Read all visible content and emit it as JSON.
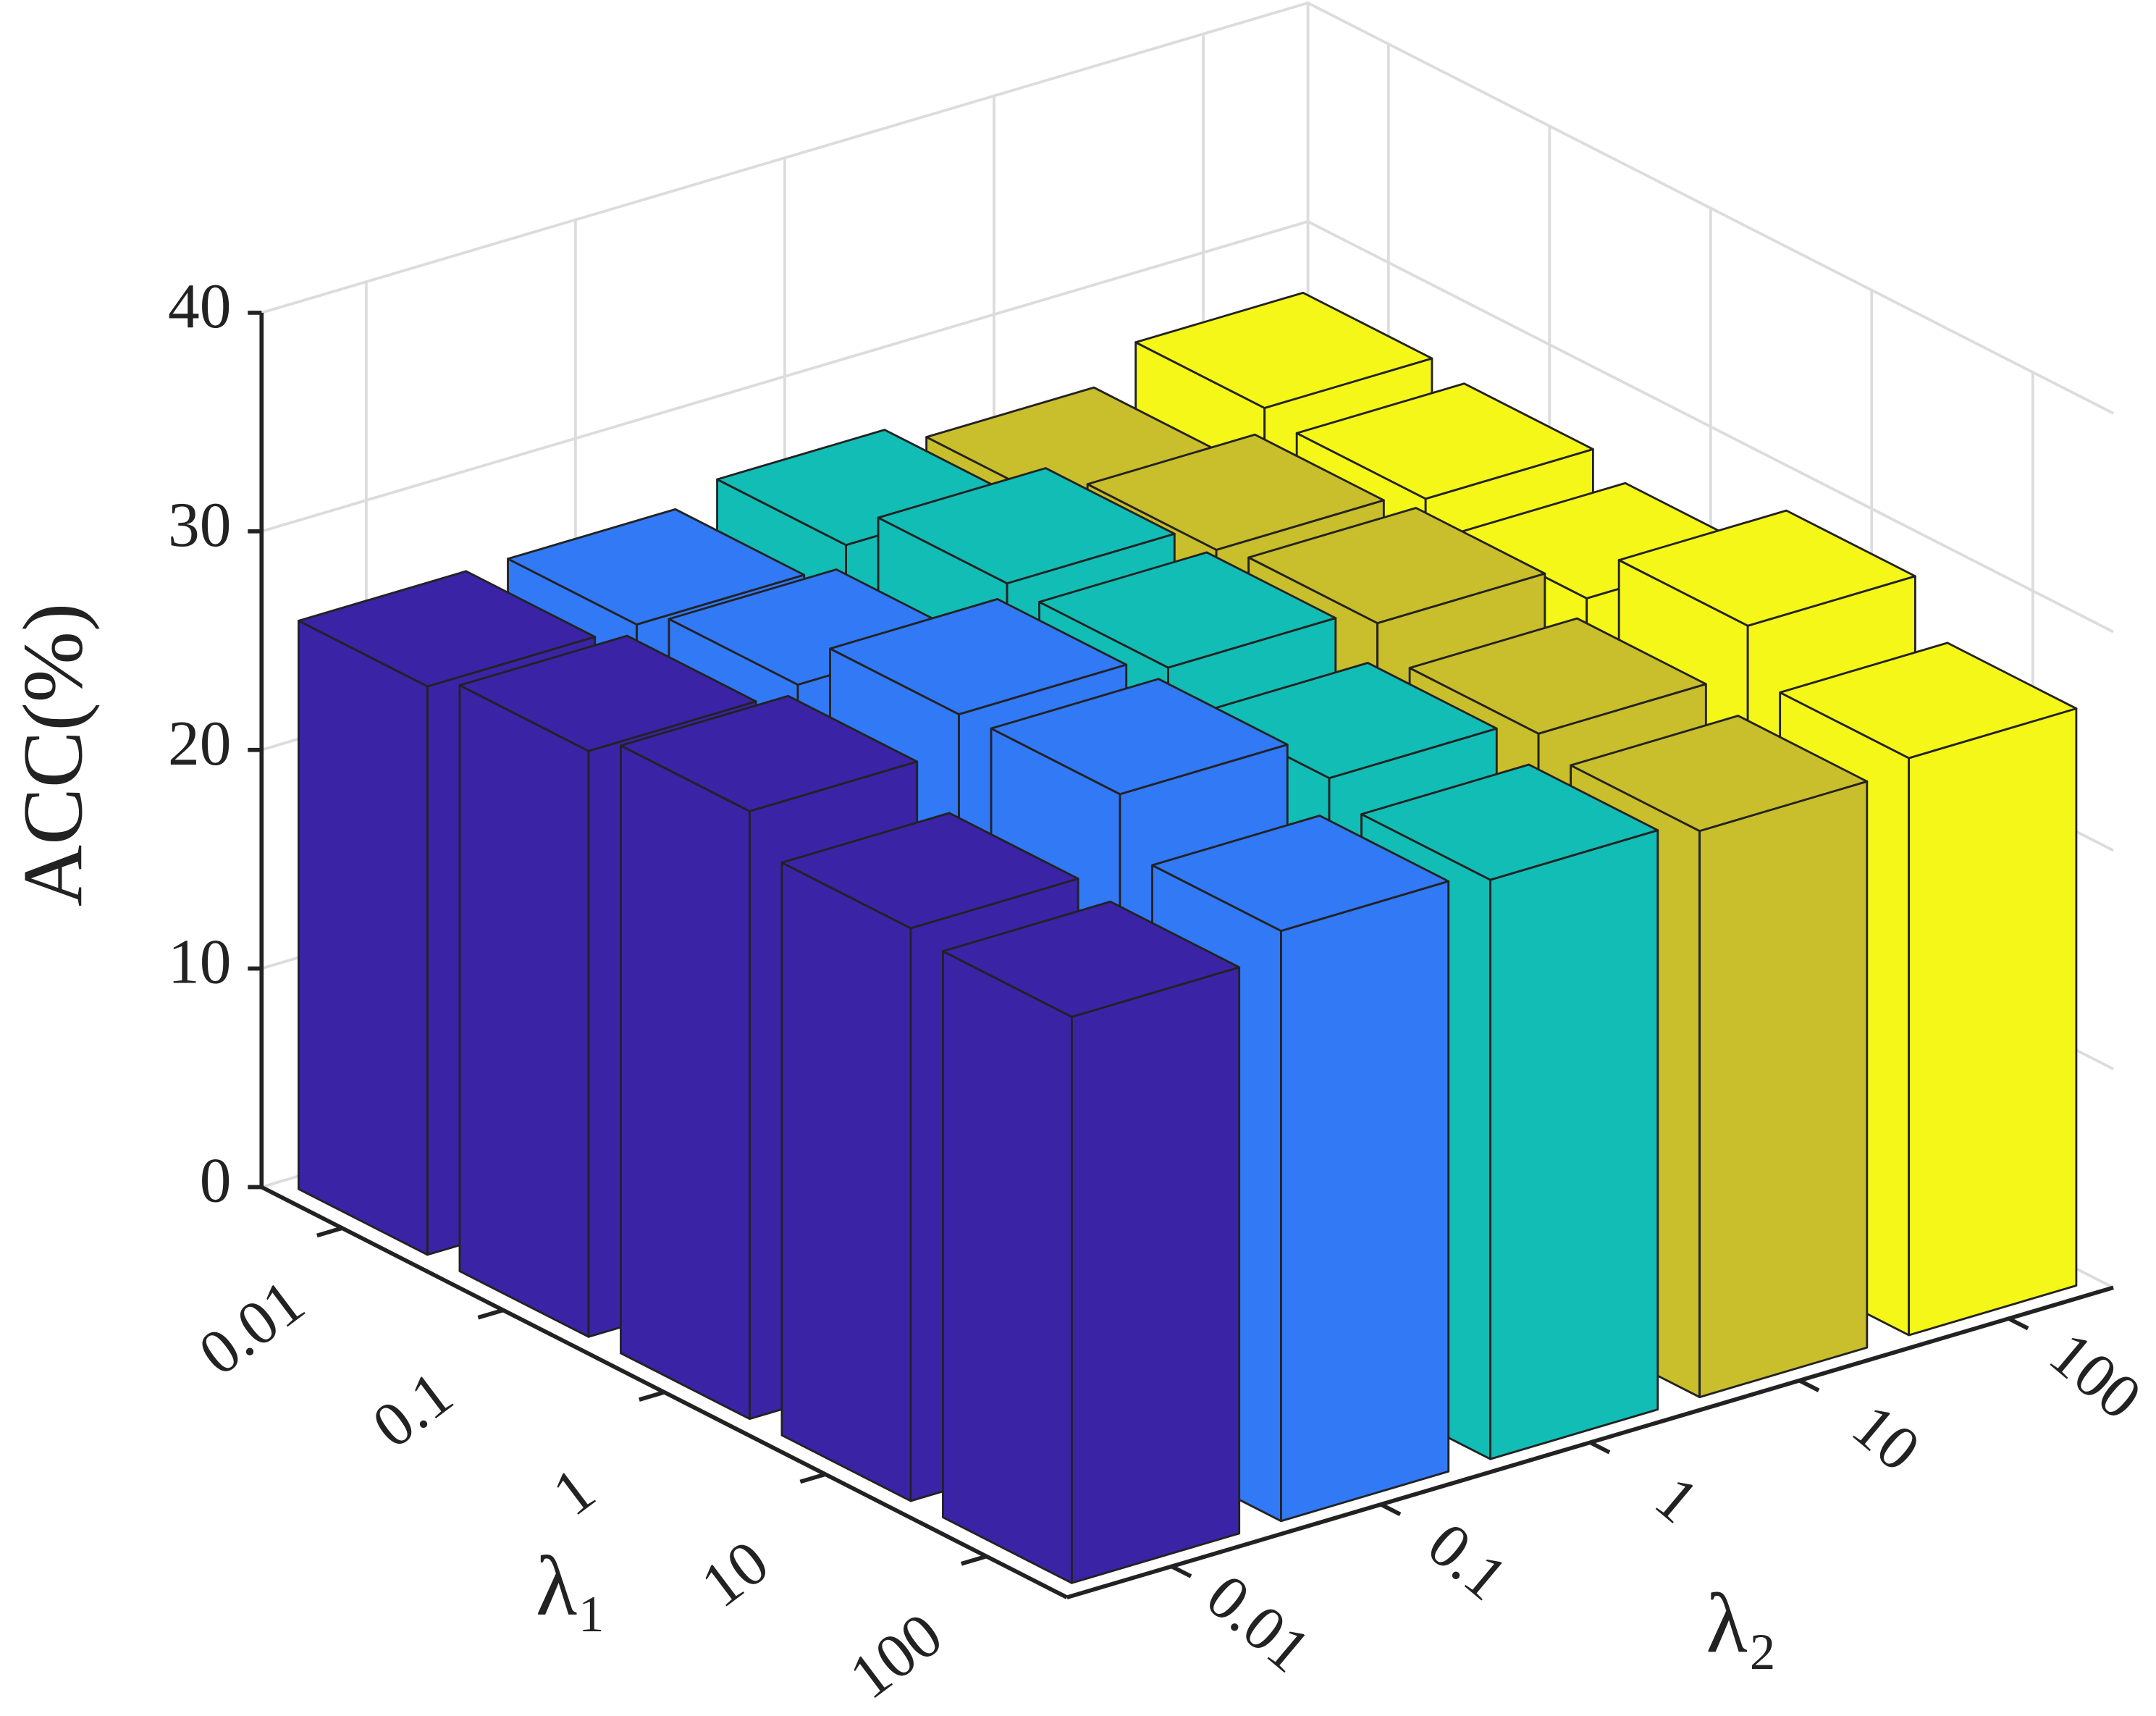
{
  "chart_data": {
    "type": "bar3d",
    "xlabel": "λ₁",
    "ylabel": "λ₂",
    "zlabel": "ACC(%)",
    "categories": [
      "0.01",
      "0.1",
      "1",
      "10",
      "100"
    ],
    "series": [
      {
        "name": "0.01",
        "color": "#3b23a6",
        "values": [
          26,
          26.8,
          27.8,
          26.2,
          25.9
        ]
      },
      {
        "name": "0.1",
        "color": "#3279f5",
        "values": [
          26,
          27,
          29.4,
          29.5,
          27
        ]
      },
      {
        "name": "1",
        "color": "#12bdb5",
        "values": [
          26.8,
          28.8,
          28.7,
          27.4,
          26.5
        ]
      },
      {
        "name": "10",
        "color": "#c9be2b",
        "values": [
          25.9,
          27.5,
          27.9,
          26.6,
          25.9
        ]
      },
      {
        "name": "100",
        "color": "#f4f718",
        "values": [
          27.4,
          27,
          26.2,
          28.7,
          26.4
        ]
      }
    ],
    "zlim": [
      0,
      40
    ],
    "zticks": [
      0,
      10,
      20,
      30,
      40
    ],
    "grid": true
  }
}
